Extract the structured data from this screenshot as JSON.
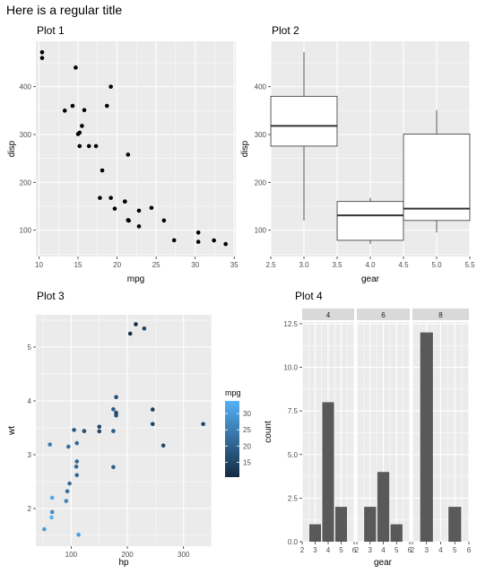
{
  "main_title": "Here is a regular title",
  "colors": {
    "panel": "#ebebeb",
    "grid_major": "#ffffff",
    "bar": "#595959",
    "strip": "#d9d9d9",
    "point": "#000000",
    "gradient_low": "#132b43",
    "gradient_high": "#56b1f7"
  },
  "chart_data": [
    {
      "type": "scatter",
      "title": "Plot 1",
      "xlabel": "mpg",
      "ylabel": "disp",
      "xlim": [
        9.6,
        35.2
      ],
      "ylim": [
        45,
        495
      ],
      "xticks": [
        10,
        15,
        20,
        25,
        30,
        35
      ],
      "yticks": [
        100,
        200,
        300,
        400
      ],
      "grid": true,
      "points": [
        {
          "x": 21.0,
          "y": 160
        },
        {
          "x": 21.0,
          "y": 160
        },
        {
          "x": 22.8,
          "y": 108
        },
        {
          "x": 21.4,
          "y": 258
        },
        {
          "x": 18.7,
          "y": 360
        },
        {
          "x": 18.1,
          "y": 225
        },
        {
          "x": 14.3,
          "y": 360
        },
        {
          "x": 24.4,
          "y": 146.7
        },
        {
          "x": 22.8,
          "y": 140.8
        },
        {
          "x": 19.2,
          "y": 167.6
        },
        {
          "x": 17.8,
          "y": 167.6
        },
        {
          "x": 16.4,
          "y": 275.8
        },
        {
          "x": 17.3,
          "y": 275.8
        },
        {
          "x": 15.2,
          "y": 275.8
        },
        {
          "x": 10.4,
          "y": 472
        },
        {
          "x": 10.4,
          "y": 460
        },
        {
          "x": 14.7,
          "y": 440
        },
        {
          "x": 32.4,
          "y": 78.7
        },
        {
          "x": 30.4,
          "y": 75.7
        },
        {
          "x": 33.9,
          "y": 71.1
        },
        {
          "x": 21.5,
          "y": 120.1
        },
        {
          "x": 15.5,
          "y": 318
        },
        {
          "x": 15.2,
          "y": 304
        },
        {
          "x": 13.3,
          "y": 350
        },
        {
          "x": 19.2,
          "y": 400
        },
        {
          "x": 27.3,
          "y": 79
        },
        {
          "x": 26.0,
          "y": 120.3
        },
        {
          "x": 30.4,
          "y": 95.1
        },
        {
          "x": 15.8,
          "y": 351
        },
        {
          "x": 19.7,
          "y": 145
        },
        {
          "x": 15.0,
          "y": 301
        },
        {
          "x": 21.4,
          "y": 121
        }
      ]
    },
    {
      "type": "box",
      "title": "Plot 2",
      "xlabel": "gear",
      "ylabel": "disp",
      "xlim": [
        2.5,
        5.5
      ],
      "ylim": [
        45,
        495
      ],
      "xticks": [
        "2.5",
        "3.0",
        "3.5",
        "4.0",
        "4.5",
        "5.0",
        "5.5"
      ],
      "yticks": [
        100,
        200,
        300,
        400
      ],
      "grid": true,
      "boxes": [
        {
          "x": 3,
          "min": 120.1,
          "q1": 275.8,
          "median": 318,
          "q3": 380,
          "max": 472
        },
        {
          "x": 4,
          "min": 71.1,
          "q1": 78.85,
          "median": 130.9,
          "q3": 160,
          "max": 167.6
        },
        {
          "x": 5,
          "min": 95.1,
          "q1": 120.3,
          "median": 145,
          "q3": 301,
          "max": 351
        }
      ]
    },
    {
      "type": "scatter",
      "title": "Plot 3",
      "xlabel": "hp",
      "ylabel": "wt",
      "xlim": [
        37,
        350
      ],
      "ylim": [
        1.3,
        5.6
      ],
      "xticks": [
        100,
        200,
        300
      ],
      "yticks": [
        2,
        3,
        4,
        5
      ],
      "grid": true,
      "legend": {
        "title": "mpg",
        "ticks": [
          15,
          20,
          25,
          30
        ],
        "range": [
          10.4,
          33.9
        ],
        "placement": "right"
      },
      "points": [
        {
          "x": 110,
          "y": 2.62,
          "mpg": 21.0
        },
        {
          "x": 110,
          "y": 2.875,
          "mpg": 21.0
        },
        {
          "x": 93,
          "y": 2.32,
          "mpg": 22.8
        },
        {
          "x": 110,
          "y": 3.215,
          "mpg": 21.4
        },
        {
          "x": 175,
          "y": 3.44,
          "mpg": 18.7
        },
        {
          "x": 105,
          "y": 3.46,
          "mpg": 18.1
        },
        {
          "x": 245,
          "y": 3.57,
          "mpg": 14.3
        },
        {
          "x": 62,
          "y": 3.19,
          "mpg": 24.4
        },
        {
          "x": 95,
          "y": 3.15,
          "mpg": 22.8
        },
        {
          "x": 123,
          "y": 3.44,
          "mpg": 19.2
        },
        {
          "x": 123,
          "y": 3.44,
          "mpg": 17.8
        },
        {
          "x": 180,
          "y": 4.07,
          "mpg": 16.4
        },
        {
          "x": 180,
          "y": 3.73,
          "mpg": 17.3
        },
        {
          "x": 180,
          "y": 3.78,
          "mpg": 15.2
        },
        {
          "x": 205,
          "y": 5.25,
          "mpg": 10.4
        },
        {
          "x": 215,
          "y": 5.424,
          "mpg": 10.4
        },
        {
          "x": 230,
          "y": 5.345,
          "mpg": 14.7
        },
        {
          "x": 66,
          "y": 2.2,
          "mpg": 32.4
        },
        {
          "x": 52,
          "y": 1.615,
          "mpg": 30.4
        },
        {
          "x": 65,
          "y": 1.835,
          "mpg": 33.9
        },
        {
          "x": 97,
          "y": 2.465,
          "mpg": 21.5
        },
        {
          "x": 150,
          "y": 3.52,
          "mpg": 15.5
        },
        {
          "x": 150,
          "y": 3.435,
          "mpg": 15.2
        },
        {
          "x": 245,
          "y": 3.84,
          "mpg": 13.3
        },
        {
          "x": 175,
          "y": 3.845,
          "mpg": 19.2
        },
        {
          "x": 66,
          "y": 1.935,
          "mpg": 27.3
        },
        {
          "x": 91,
          "y": 2.14,
          "mpg": 26.0
        },
        {
          "x": 113,
          "y": 1.513,
          "mpg": 30.4
        },
        {
          "x": 264,
          "y": 3.17,
          "mpg": 15.8
        },
        {
          "x": 175,
          "y": 2.77,
          "mpg": 19.7
        },
        {
          "x": 335,
          "y": 3.57,
          "mpg": 15.0
        },
        {
          "x": 109,
          "y": 2.78,
          "mpg": 21.4
        }
      ]
    },
    {
      "type": "bar",
      "title": "Plot 4",
      "xlabel": "gear",
      "ylabel": "count",
      "xlim": [
        2,
        6
      ],
      "ylim": [
        0,
        12.6
      ],
      "xticks": [
        2,
        3,
        4,
        5,
        6
      ],
      "yticks": [
        "0.0",
        "2.5",
        "5.0",
        "7.5",
        "10.0",
        "12.5"
      ],
      "grid": true,
      "facets": [
        {
          "label": "4",
          "categories": [
            3,
            4,
            5
          ],
          "values": [
            1,
            8,
            2
          ]
        },
        {
          "label": "6",
          "categories": [
            3,
            4,
            5
          ],
          "values": [
            2,
            4,
            1
          ]
        },
        {
          "label": "8",
          "categories": [
            3,
            5
          ],
          "values": [
            12,
            2
          ]
        }
      ]
    }
  ]
}
